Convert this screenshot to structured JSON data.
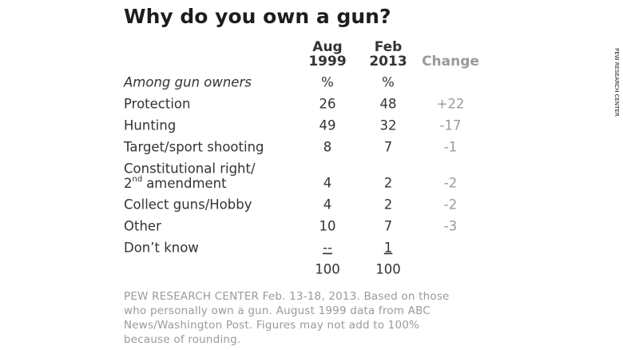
{
  "title": "Why do you own a gun?",
  "columns": [
    {
      "line1": "Aug",
      "line2": "1999"
    },
    {
      "line1": "Feb",
      "line2": "2013"
    },
    {
      "line1": "Change"
    }
  ],
  "subgroup": {
    "label": "Among gun owners",
    "aug": "%",
    "feb": "%"
  },
  "rows": [
    {
      "label": "Protection",
      "aug": 26,
      "feb": 48,
      "change": "+22"
    },
    {
      "label": "Hunting",
      "aug": 49,
      "feb": 32,
      "change": "-17"
    },
    {
      "label": "Target/sport shooting",
      "aug": 8,
      "feb": 7,
      "change": "-1"
    },
    {
      "label": "Constitutional right/",
      "label2": {
        "base": "2",
        "sup": "nd",
        "rest": "amendment"
      },
      "aug": 4,
      "feb": 2,
      "change": "-2"
    },
    {
      "label": "Collect guns/Hobby",
      "aug": 4,
      "feb": 2,
      "change": "-2"
    },
    {
      "label": "Other",
      "aug": 10,
      "feb": 7,
      "change": "-3"
    },
    {
      "label": "Don’t know",
      "aug": "--",
      "feb": 1
    }
  ],
  "totals": {
    "aug": 100,
    "feb": 100
  },
  "footnote": [
    "PEW RESEARCH CENTER Feb. 13-18, 2013. Based on those",
    "who personally own a gun. August 1999 data from ABC",
    "News/Washington Post. Figures may not add to 100%",
    "because of rounding."
  ],
  "side_credit": "PEW RESEARCH CENTER"
}
